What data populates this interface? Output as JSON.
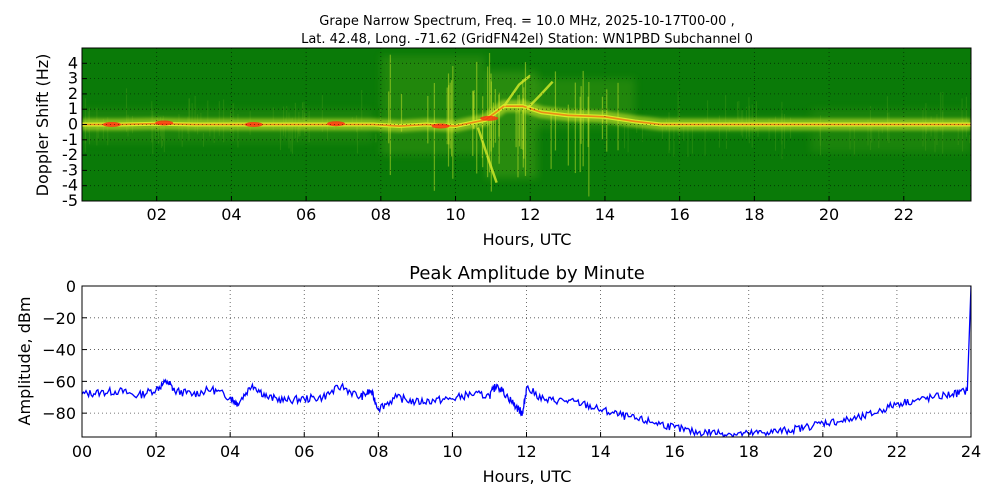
{
  "chart_data": [
    {
      "type": "heatmap",
      "title_line1": "Grape Narrow Spectrum, Freq. = 10.0 MHz, 2025-10-17T00-00 ,",
      "title_line2": "Lat.  42.48, Long. -71.62 (GridFN42el) Station: WN1PBD Subchannel 0",
      "xlabel": "Hours, UTC",
      "ylabel": "Doppler Shift (Hz)",
      "xlim": [
        0,
        23.8
      ],
      "ylim": [
        -5,
        5
      ],
      "xticks": [
        2,
        4,
        6,
        8,
        10,
        12,
        14,
        16,
        18,
        20,
        22
      ],
      "xtick_labels": [
        "02",
        "04",
        "06",
        "08",
        "10",
        "12",
        "14",
        "16",
        "18",
        "20",
        "22"
      ],
      "yticks": [
        -5,
        -4,
        -3,
        -2,
        -1,
        0,
        1,
        2,
        3,
        4
      ],
      "ytick_labels": [
        "-5",
        "-4",
        "-3",
        "-2",
        "-1",
        "0",
        "1",
        "2",
        "3",
        "4"
      ],
      "colors": {
        "background": "#0a7a08",
        "mid": "#4ea019",
        "bright": "#d8ec2c",
        "peak": "#ff2a10"
      },
      "trace": [
        [
          0,
          0
        ],
        [
          1,
          0
        ],
        [
          2,
          0.05
        ],
        [
          3,
          0
        ],
        [
          4,
          0
        ],
        [
          5,
          0
        ],
        [
          6,
          0
        ],
        [
          7,
          0
        ],
        [
          7.8,
          0
        ],
        [
          8.5,
          -0.1
        ],
        [
          9.2,
          0
        ],
        [
          10,
          -0.1
        ],
        [
          10.8,
          0.3
        ],
        [
          11.3,
          1.2
        ],
        [
          11.8,
          1.2
        ],
        [
          12.3,
          0.8
        ],
        [
          13,
          0.6
        ],
        [
          14,
          0.5
        ],
        [
          14.8,
          0.2
        ],
        [
          15.5,
          0
        ],
        [
          17,
          0
        ],
        [
          19,
          0
        ],
        [
          20,
          0
        ],
        [
          21,
          0
        ],
        [
          22,
          0
        ],
        [
          23.8,
          0
        ]
      ]
    },
    {
      "type": "line",
      "title": "Peak Amplitude by Minute",
      "xlabel": "Hours, UTC",
      "ylabel": "Amplitude, dBm",
      "xlim": [
        0,
        24
      ],
      "ylim": [
        -95,
        0
      ],
      "grid": true,
      "color": "#0000ff",
      "xticks": [
        0,
        2,
        4,
        6,
        8,
        10,
        12,
        14,
        16,
        18,
        20,
        22,
        24
      ],
      "xtick_labels": [
        "00",
        "02",
        "04",
        "06",
        "08",
        "10",
        "12",
        "14",
        "16",
        "18",
        "20",
        "22",
        "24"
      ],
      "yticks": [
        0,
        -20,
        -40,
        -60,
        -80
      ],
      "ytick_labels": [
        "0",
        "−20",
        "−40",
        "−60",
        "−80"
      ],
      "series": [
        {
          "name": "Peak amplitude",
          "x": [
            0,
            0.5,
            1,
            1.5,
            2,
            2.3,
            2.5,
            3,
            3.5,
            4,
            4.2,
            4.6,
            5,
            5.5,
            6,
            6.5,
            7,
            7.5,
            7.8,
            8,
            8.5,
            9,
            9.5,
            10,
            10.5,
            11,
            11.2,
            11.5,
            11.8,
            11.9,
            12,
            12.5,
            13,
            13.5,
            14,
            14.5,
            15,
            15.5,
            16,
            16.5,
            17,
            17.5,
            18,
            18.5,
            19,
            19.5,
            20,
            20.5,
            21,
            21.5,
            22,
            22.5,
            23,
            23.5,
            23.9,
            24
          ],
          "y": [
            -68,
            -67,
            -66,
            -69,
            -65,
            -60,
            -66,
            -68,
            -65,
            -70,
            -74,
            -62,
            -70,
            -72,
            -71,
            -70,
            -63,
            -70,
            -66,
            -77,
            -70,
            -73,
            -72,
            -71,
            -68,
            -69,
            -62,
            -70,
            -78,
            -80,
            -64,
            -72,
            -72,
            -74,
            -78,
            -81,
            -84,
            -86,
            -89,
            -92,
            -92,
            -93,
            -93,
            -92,
            -91,
            -89,
            -86,
            -85,
            -83,
            -79,
            -74,
            -72,
            -70,
            -68,
            -66,
            0
          ]
        }
      ]
    }
  ]
}
